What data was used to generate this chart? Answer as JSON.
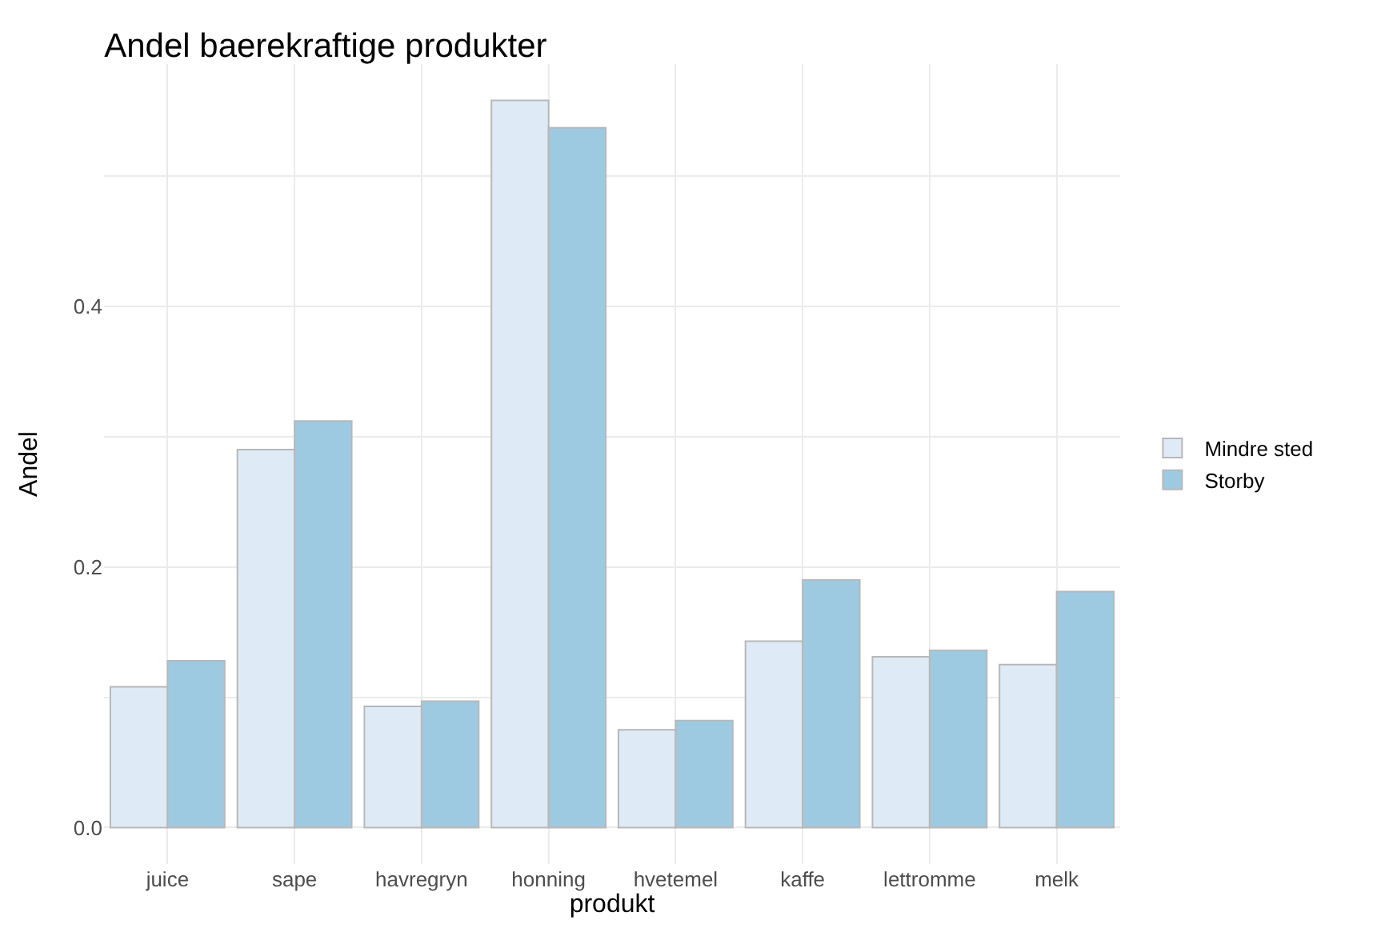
{
  "chart_data": {
    "type": "bar",
    "title": "Andel baerekraftige produkter",
    "xlabel": "produkt",
    "ylabel": "Andel",
    "categories": [
      "juice",
      "sape",
      "havregryn",
      "honning",
      "hvetemel",
      "kaffe",
      "lettromme",
      "melk"
    ],
    "series": [
      {
        "name": "Mindre sted",
        "color": "#deebf7",
        "values": [
          0.108,
          0.29,
          0.093,
          0.558,
          0.075,
          0.143,
          0.131,
          0.125
        ]
      },
      {
        "name": "Storby",
        "color": "#9ecae1",
        "values": [
          0.128,
          0.312,
          0.097,
          0.537,
          0.082,
          0.19,
          0.136,
          0.181
        ]
      }
    ],
    "ylim": [
      -0.028,
      0.586
    ],
    "yticks": [
      {
        "value": 0,
        "label": "0.0"
      },
      {
        "value": 0.1,
        "label": null
      },
      0.2,
      {
        "value": 0.3,
        "label": null
      },
      0.4,
      {
        "value": 0.5,
        "label": null
      }
    ],
    "grid": true,
    "legend": "right"
  }
}
